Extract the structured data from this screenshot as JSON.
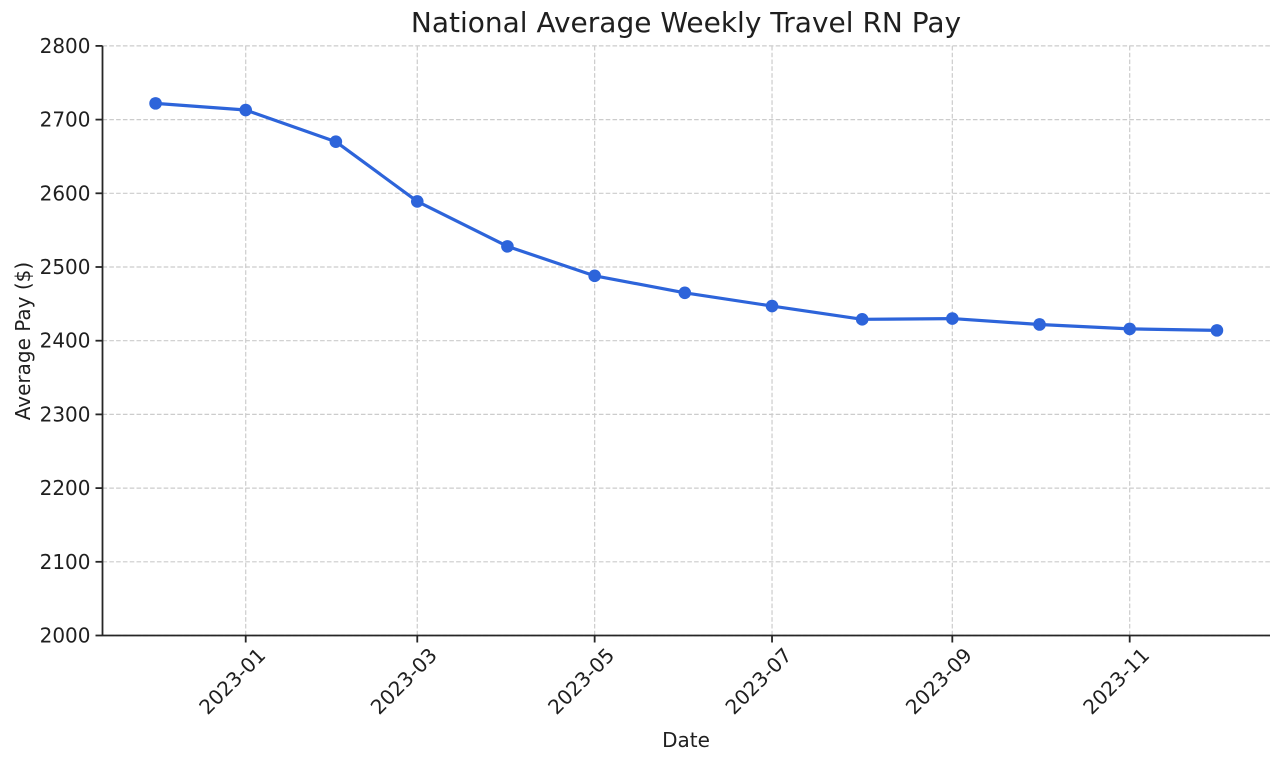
{
  "chart_data": {
    "type": "line",
    "title": "National Average Weekly Travel RN Pay",
    "xlabel": "Date",
    "ylabel": "Average Pay ($)",
    "x": [
      "2022-12",
      "2023-01",
      "2023-02",
      "2023-03",
      "2023-04",
      "2023-05",
      "2023-06",
      "2023-07",
      "2023-08",
      "2023-09",
      "2023-10",
      "2023-11",
      "2023-12"
    ],
    "values": [
      2722,
      2713,
      2670,
      2589,
      2528,
      2488,
      2465,
      2447,
      2429,
      2430,
      2422,
      2416,
      2414
    ],
    "ylim": [
      2000,
      2800
    ],
    "yticks": [
      2000,
      2100,
      2200,
      2300,
      2400,
      2500,
      2600,
      2700,
      2800
    ],
    "xticks": [
      "2023-01",
      "2023-03",
      "2023-05",
      "2023-07",
      "2023-09",
      "2023-11"
    ],
    "x_margin_frac": 0.05,
    "grid": true,
    "legend": "none",
    "line_color": "#2d64da",
    "marker": "circle",
    "grid_color": "#cccccc",
    "axis_color": "#262626",
    "text_color": "#1f1f1f",
    "background": "#ffffff"
  }
}
